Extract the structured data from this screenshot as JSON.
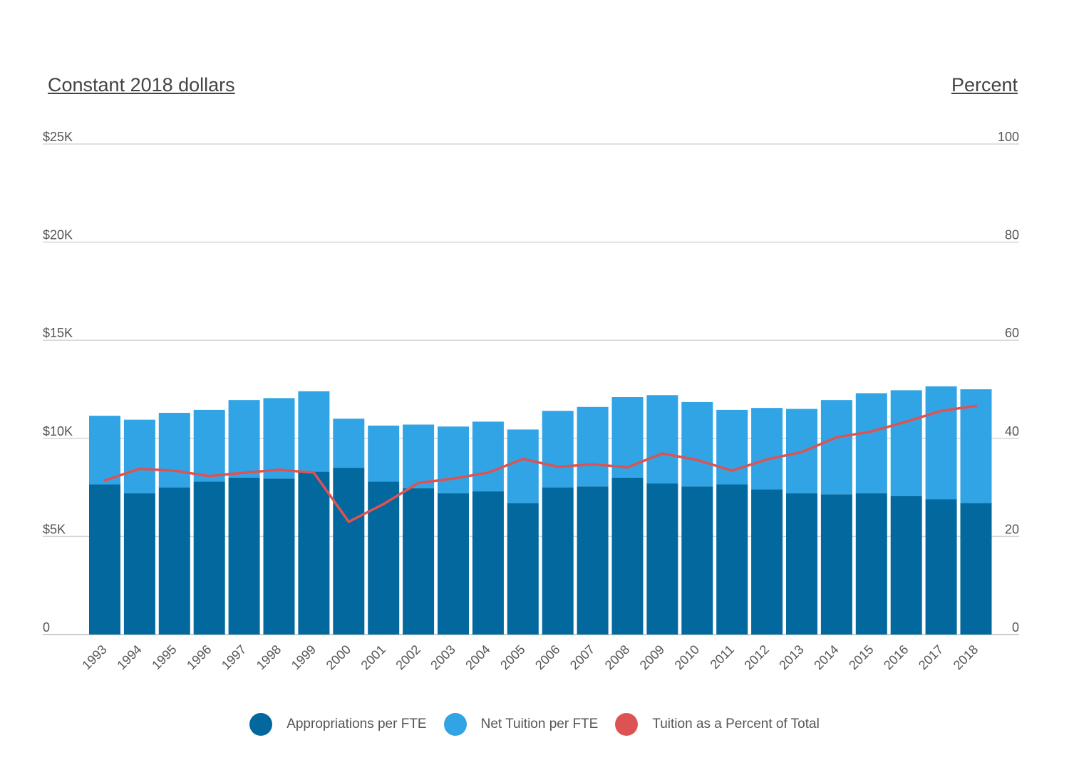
{
  "chart_data": {
    "type": "bar",
    "stacked": true,
    "left_axis_title": "Constant 2018 dollars",
    "right_axis_title": "Percent",
    "left_ticks": [
      "0",
      "$5K",
      "$10K",
      "$15K",
      "$20K",
      "$25K"
    ],
    "right_ticks": [
      "0",
      "20",
      "40",
      "60",
      "80",
      "100"
    ],
    "ylim": [
      0,
      25000
    ],
    "y2lim": [
      0,
      100
    ],
    "grid": true,
    "legend_placement": "bottom-center",
    "categories": [
      "1993",
      "1994",
      "1995",
      "1996",
      "1997",
      "1998",
      "1999",
      "2000",
      "2001",
      "2002",
      "2003",
      "2004",
      "2005",
      "2006",
      "2007",
      "2008",
      "2009",
      "2010",
      "2011",
      "2012",
      "2013",
      "2014",
      "2015",
      "2016",
      "2017",
      "2018"
    ],
    "series": [
      {
        "name": "Appropriations per FTE",
        "type": "bar",
        "axis": "left",
        "color": "#02689e",
        "values": [
          7650,
          7200,
          7500,
          7800,
          8000,
          7950,
          8300,
          8500,
          7800,
          7450,
          7200,
          7300,
          6700,
          7500,
          7550,
          8000,
          7700,
          7550,
          7650,
          7400,
          7200,
          7150,
          7200,
          7050,
          6900,
          6700
        ]
      },
      {
        "name": "Net Tuition per FTE",
        "type": "bar",
        "axis": "left",
        "color": "#30a4e4",
        "values": [
          3500,
          3750,
          3800,
          3650,
          3950,
          4100,
          4100,
          2500,
          2850,
          3250,
          3400,
          3550,
          3750,
          3900,
          4050,
          4100,
          4500,
          4300,
          3800,
          4150,
          4300,
          4800,
          5100,
          5400,
          5750,
          5800
        ]
      },
      {
        "name": "Tuition as a Percent of Total",
        "type": "line",
        "axis": "right",
        "color": "#dd5353",
        "values": [
          31.4,
          33.8,
          33.4,
          32.3,
          33.0,
          33.6,
          33.0,
          23.0,
          26.6,
          30.9,
          31.8,
          33.0,
          35.8,
          34.2,
          34.7,
          34.1,
          36.9,
          35.6,
          33.4,
          35.7,
          37.2,
          40.2,
          41.4,
          43.4,
          45.6,
          46.6
        ]
      }
    ]
  }
}
